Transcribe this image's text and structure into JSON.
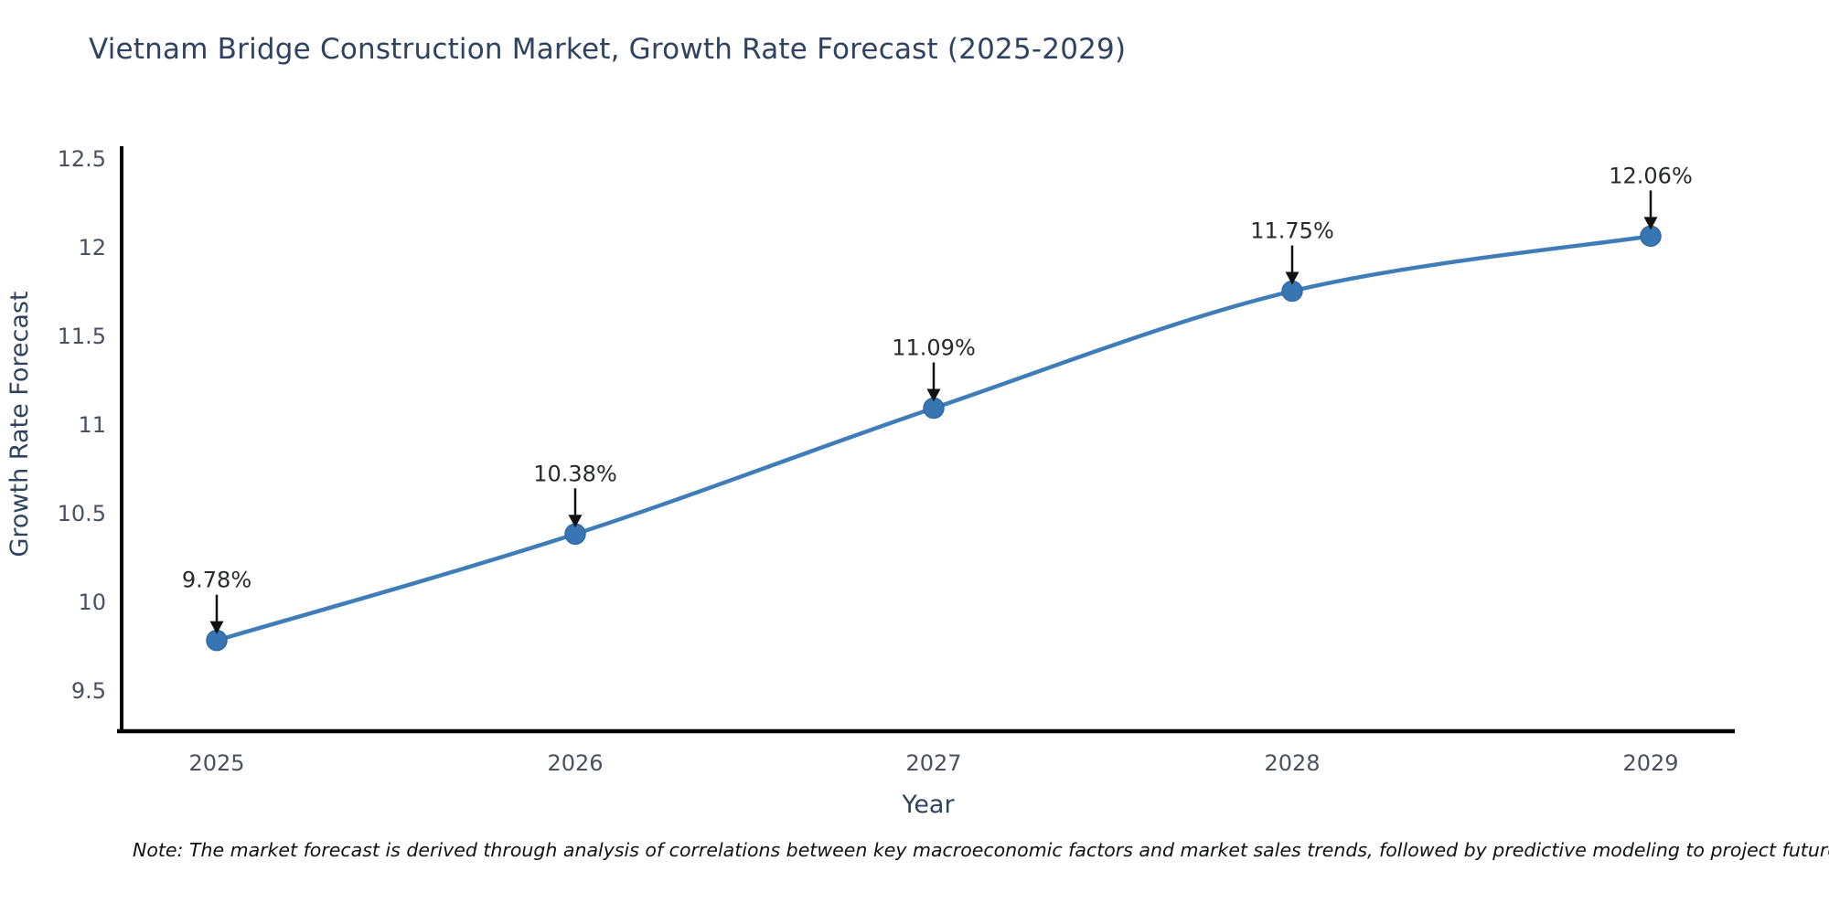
{
  "chart_data": {
    "type": "line",
    "title": "Vietnam Bridge Construction Market, Growth Rate Forecast (2025-2029)",
    "xlabel": "Year",
    "ylabel": "Growth Rate Forecast",
    "categories": [
      "2025",
      "2026",
      "2027",
      "2028",
      "2029"
    ],
    "series": [
      {
        "name": "Growth Rate Forecast",
        "values": [
          9.78,
          10.38,
          11.09,
          11.75,
          12.06
        ],
        "point_labels": [
          "9.78%",
          "10.38%",
          "11.09%",
          "11.75%",
          "12.06%"
        ],
        "line_shape": "spline",
        "markers": true
      }
    ],
    "yticks": [
      9.5,
      10,
      10.5,
      11,
      11.5,
      12,
      12.5
    ],
    "ytick_labels": [
      "9.5",
      "10",
      "10.5",
      "11",
      "11.5",
      "12",
      "12.5"
    ],
    "ylim": [
      9.5,
      12.5
    ],
    "grid": false,
    "legend": false,
    "annotation_arrows": true
  },
  "note": {
    "text": "Note: The market forecast is derived through analysis of correlations between key macroeconomic factors and market sales trends, followed by predictive modeling to project future sal"
  },
  "colors": {
    "title": "#2f4260",
    "axis_label": "#2f4260",
    "tick_label": "#49505e",
    "data_label": "#26282c",
    "axis_line": "#000000",
    "series_line": "#3f7db8",
    "marker_fill": "#3776b2",
    "marker_stroke": "#2e6ba6",
    "arrow": "#111111",
    "note_text": "#101114",
    "background": "#ffffff"
  }
}
